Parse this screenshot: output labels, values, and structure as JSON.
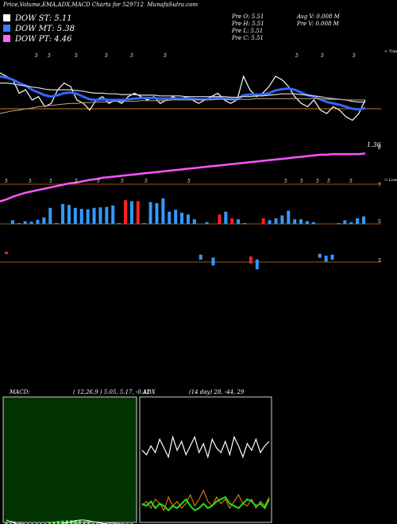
{
  "header": {
    "title": "Price,Volume,EMA,ADX,MACD Charts for 529712",
    "site": "MunafaSutra.com",
    "stats_left": [
      "Pre  O: 5.51",
      "Pre  H: 5.51",
      "Pre  L: 5.51",
      "Pre  C: 5.51"
    ],
    "stats_right": [
      "Avg V: 0.008 M",
      "Pre  V: 0.008 M"
    ]
  },
  "legend": [
    {
      "label": "DOW ST: 5.11",
      "color": "#ffffff"
    },
    {
      "label": "DOW MT: 5.38",
      "color": "#3a7bff"
    },
    {
      "label": "DOW PT: 4.46",
      "color": "#ff66ff"
    }
  ],
  "colors": {
    "price": "#ffffff",
    "ema_short": "#3366ff",
    "ema_mid": "#dddddd",
    "ema_long": "#bbaa88",
    "ema_pt": "#ff55ff",
    "hline": "#cc7722",
    "vol_up": "#3399ff",
    "vol_down": "#ff2222",
    "macd_bg": "#003300",
    "macd_hist": "#ff6666",
    "adx_plus": "#ff8800",
    "adx_minus": "#ffffff",
    "adx": "#22dd22"
  },
  "chart_data": [
    {
      "type": "line",
      "name": "price-panel",
      "annotations": [
        "< Tops",
        "< Lows",
        "1.36",
        "8"
      ],
      "series": [
        {
          "name": "Close",
          "values": [
            5.95,
            5.9,
            5.85,
            5.65,
            5.7,
            5.55,
            5.6,
            5.45,
            5.5,
            5.7,
            5.8,
            5.75,
            5.55,
            5.5,
            5.4,
            5.55,
            5.6,
            5.5,
            5.55,
            5.5,
            5.6,
            5.65,
            5.6,
            5.55,
            5.6,
            5.5,
            5.55,
            5.6,
            5.55,
            5.6,
            5.55,
            5.5,
            5.55,
            5.6,
            5.65,
            5.55,
            5.5,
            5.55,
            5.9,
            5.7,
            5.6,
            5.65,
            5.75,
            5.9,
            5.85,
            5.75,
            5.6,
            5.5,
            5.45,
            5.55,
            5.4,
            5.35,
            5.45,
            5.4,
            5.3,
            5.25,
            5.35,
            5.55
          ]
        },
        {
          "name": "EMA short",
          "values": [
            5.9,
            5.88,
            5.85,
            5.8,
            5.76,
            5.7,
            5.66,
            5.62,
            5.6,
            5.62,
            5.65,
            5.66,
            5.64,
            5.6,
            5.56,
            5.55,
            5.56,
            5.55,
            5.55,
            5.55,
            5.56,
            5.57,
            5.58,
            5.58,
            5.58,
            5.57,
            5.57,
            5.57,
            5.57,
            5.57,
            5.57,
            5.56,
            5.56,
            5.57,
            5.58,
            5.57,
            5.56,
            5.56,
            5.62,
            5.63,
            5.63,
            5.63,
            5.65,
            5.69,
            5.71,
            5.72,
            5.7,
            5.66,
            5.62,
            5.6,
            5.56,
            5.52,
            5.5,
            5.48,
            5.45,
            5.42,
            5.41,
            5.43
          ]
        },
        {
          "name": "EMA mid",
          "values": [
            5.8,
            5.8,
            5.79,
            5.77,
            5.76,
            5.74,
            5.73,
            5.71,
            5.7,
            5.7,
            5.7,
            5.7,
            5.69,
            5.68,
            5.66,
            5.65,
            5.65,
            5.64,
            5.64,
            5.63,
            5.63,
            5.63,
            5.62,
            5.62,
            5.62,
            5.61,
            5.61,
            5.61,
            5.61,
            5.6,
            5.6,
            5.6,
            5.6,
            5.6,
            5.6,
            5.6,
            5.59,
            5.59,
            5.6,
            5.6,
            5.61,
            5.61,
            5.62,
            5.63,
            5.64,
            5.64,
            5.64,
            5.63,
            5.62,
            5.61,
            5.6,
            5.58,
            5.57,
            5.56,
            5.55,
            5.53,
            5.52,
            5.52
          ]
        },
        {
          "name": "EMA long",
          "values": [
            5.35,
            5.37,
            5.39,
            5.4,
            5.42,
            5.43,
            5.45,
            5.46,
            5.47,
            5.48,
            5.49,
            5.5,
            5.5,
            5.51,
            5.51,
            5.52,
            5.52,
            5.52,
            5.53,
            5.53,
            5.53,
            5.53,
            5.54,
            5.54,
            5.54,
            5.54,
            5.54,
            5.55,
            5.55,
            5.55,
            5.55,
            5.55,
            5.55,
            5.55,
            5.56,
            5.56,
            5.56,
            5.56,
            5.56,
            5.56,
            5.57,
            5.57,
            5.57,
            5.57,
            5.57,
            5.57,
            5.57,
            5.57,
            5.57,
            5.57,
            5.57,
            5.56,
            5.56,
            5.56,
            5.55,
            5.55,
            5.55,
            5.55
          ]
        },
        {
          "name": "DOW PT",
          "values": [
            4.05,
            4.08,
            4.12,
            4.15,
            4.18,
            4.2,
            4.22,
            4.24,
            4.26,
            4.28,
            4.3,
            4.32,
            4.33,
            4.35,
            4.37,
            4.38,
            4.4,
            4.41,
            4.42,
            4.43,
            4.44,
            4.45,
            4.46,
            4.47,
            4.48,
            4.49,
            4.5,
            4.51,
            4.52,
            4.53,
            4.54,
            4.55,
            4.56,
            4.57,
            4.58,
            4.59,
            4.6,
            4.61,
            4.62,
            4.63,
            4.64,
            4.65,
            4.66,
            4.67,
            4.68,
            4.69,
            4.7,
            4.71,
            4.72,
            4.73,
            4.74,
            4.74,
            4.75,
            4.75,
            4.75,
            4.75,
            4.75,
            4.76
          ]
        }
      ],
      "hline": 5.42,
      "ylim": [
        4.0,
        6.3
      ]
    },
    {
      "type": "bar",
      "name": "volume-panel",
      "tick_labels": [
        "7",
        "5",
        "3"
      ],
      "values": [
        -0.1,
        0.3,
        0,
        0.2,
        0.15,
        0.35,
        0.6,
        1.6,
        0,
        2.0,
        1.9,
        1.6,
        1.5,
        1.45,
        1.6,
        1.65,
        1.7,
        1.85,
        0,
        2.4,
        2.3,
        2.3,
        0,
        2.2,
        2.1,
        2.6,
        1.2,
        1.4,
        1.1,
        0.9,
        0.4,
        -0.4,
        0.1,
        -0.7,
        0.9,
        1.2,
        0.5,
        0.4,
        0,
        -0.6,
        -0.9,
        0.5,
        0.3,
        0.5,
        0.8,
        1.3,
        0.4,
        0.4,
        0.2,
        0.1,
        -0.3,
        -0.5,
        -0.4,
        0,
        0.3,
        0.1,
        0.5,
        0.7
      ],
      "signs": [
        "d",
        "u",
        "u",
        "u",
        "u",
        "u",
        "u",
        "u",
        "u",
        "u",
        "u",
        "u",
        "u",
        "u",
        "u",
        "u",
        "u",
        "u",
        "u",
        "d",
        "u",
        "d",
        "u",
        "u",
        "u",
        "u",
        "u",
        "u",
        "u",
        "u",
        "u",
        "u",
        "u",
        "u",
        "d",
        "u",
        "d",
        "u",
        "u",
        "d",
        "u",
        "d",
        "u",
        "u",
        "u",
        "u",
        "u",
        "u",
        "u",
        "u",
        "u",
        "u",
        "u",
        "u",
        "u",
        "u",
        "u",
        "u"
      ]
    },
    {
      "type": "area",
      "name": "macd-panel",
      "title": "MACD:",
      "params": "( 12,26,9 ) 5.05,  5.17,  -0.12",
      "macd": [
        0.1,
        0.05,
        0,
        -0.05,
        -0.1,
        -0.15,
        -0.18,
        -0.2,
        -0.2,
        -0.18,
        -0.15,
        -0.1,
        -0.06,
        -0.02,
        0.02,
        0.05,
        0.08,
        0.1,
        0.1,
        0.08,
        0.05,
        0.02,
        0,
        -0.02,
        -0.04,
        -0.05,
        -0.06,
        -0.08,
        -0.1,
        -0.12
      ],
      "signal": [
        0.08,
        0.06,
        0.04,
        0.01,
        -0.03,
        -0.07,
        -0.11,
        -0.14,
        -0.16,
        -0.17,
        -0.17,
        -0.15,
        -0.13,
        -0.1,
        -0.07,
        -0.04,
        -0.01,
        0.02,
        0.04,
        0.05,
        0.05,
        0.04,
        0.03,
        0.02,
        0.01,
        0,
        -0.01,
        -0.03,
        -0.05,
        -0.07
      ],
      "ylim": [
        -1,
        1
      ]
    },
    {
      "type": "line",
      "name": "adx-panel",
      "title": "ADX",
      "params": "(14 day) 28,  -44,  29",
      "series": [
        {
          "name": "DI-",
          "values": [
            62,
            58,
            66,
            60,
            72,
            64,
            56,
            74,
            62,
            70,
            58,
            66,
            74,
            60,
            68,
            56,
            72,
            64,
            60,
            70,
            58,
            74,
            66,
            56,
            68,
            62,
            72,
            60,
            66,
            70
          ]
        },
        {
          "name": "DI+",
          "values": [
            12,
            16,
            10,
            18,
            14,
            8,
            20,
            12,
            16,
            10,
            14,
            22,
            12,
            18,
            26,
            16,
            12,
            20,
            14,
            18,
            10,
            16,
            22,
            14,
            12,
            18,
            10,
            16,
            12,
            20
          ]
        },
        {
          "name": "ADX",
          "values": [
            14,
            12,
            16,
            10,
            14,
            12,
            8,
            12,
            10,
            14,
            18,
            12,
            8,
            10,
            14,
            10,
            12,
            16,
            18,
            20,
            14,
            12,
            10,
            14,
            18,
            16,
            12,
            14,
            10,
            18
          ]
        }
      ],
      "ylim": [
        0,
        100
      ]
    }
  ]
}
